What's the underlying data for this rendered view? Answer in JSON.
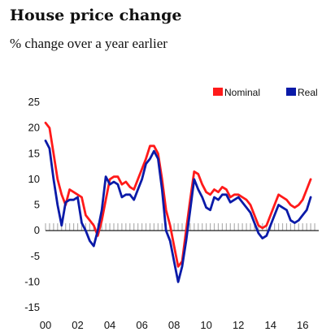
{
  "header": {
    "title": "House price change",
    "subtitle": "% change over a year earlier"
  },
  "chart_data": {
    "type": "line",
    "title": "House price change",
    "subtitle": "% change over a year earlier",
    "ylim": [
      -15,
      25
    ],
    "yticks": [
      25,
      20,
      15,
      10,
      5,
      0,
      -5,
      -10,
      -15
    ],
    "xticks": [
      "00",
      "02",
      "04",
      "06",
      "08",
      "10",
      "12",
      "14",
      "16"
    ],
    "xlim": [
      2000,
      2017
    ],
    "legend": "top-right",
    "grid": false,
    "series": [
      {
        "name": "Nominal",
        "color": "#ff1a1a",
        "points": [
          [
            2000.0,
            21
          ],
          [
            2000.25,
            20
          ],
          [
            2000.5,
            15
          ],
          [
            2000.75,
            10
          ],
          [
            2001.0,
            7
          ],
          [
            2001.25,
            5
          ],
          [
            2001.5,
            8
          ],
          [
            2001.75,
            7.5
          ],
          [
            2002.0,
            7
          ],
          [
            2002.25,
            6.5
          ],
          [
            2002.5,
            3
          ],
          [
            2002.75,
            2
          ],
          [
            2003.0,
            1
          ],
          [
            2003.25,
            -1
          ],
          [
            2003.5,
            2
          ],
          [
            2003.75,
            6
          ],
          [
            2004.0,
            10
          ],
          [
            2004.25,
            10.5
          ],
          [
            2004.5,
            10.5
          ],
          [
            2004.75,
            9
          ],
          [
            2005.0,
            9.5
          ],
          [
            2005.25,
            8.5
          ],
          [
            2005.5,
            8
          ],
          [
            2005.75,
            10
          ],
          [
            2006.0,
            12
          ],
          [
            2006.25,
            14
          ],
          [
            2006.5,
            16.5
          ],
          [
            2006.75,
            16.5
          ],
          [
            2007.0,
            15
          ],
          [
            2007.25,
            10
          ],
          [
            2007.5,
            4
          ],
          [
            2007.75,
            1
          ],
          [
            2008.0,
            -3
          ],
          [
            2008.25,
            -7
          ],
          [
            2008.5,
            -6
          ],
          [
            2008.75,
            0
          ],
          [
            2009.0,
            6
          ],
          [
            2009.25,
            11.5
          ],
          [
            2009.5,
            11
          ],
          [
            2009.75,
            9
          ],
          [
            2010.0,
            7.5
          ],
          [
            2010.25,
            7
          ],
          [
            2010.5,
            8
          ],
          [
            2010.75,
            7.5
          ],
          [
            2011.0,
            8.5
          ],
          [
            2011.25,
            8
          ],
          [
            2011.5,
            6.5
          ],
          [
            2011.75,
            7
          ],
          [
            2012.0,
            7
          ],
          [
            2012.25,
            6.5
          ],
          [
            2012.5,
            6
          ],
          [
            2012.75,
            5
          ],
          [
            2013.0,
            3
          ],
          [
            2013.25,
            1
          ],
          [
            2013.5,
            0.5
          ],
          [
            2013.75,
            1
          ],
          [
            2014.0,
            3
          ],
          [
            2014.25,
            5
          ],
          [
            2014.5,
            7
          ],
          [
            2014.75,
            6.5
          ],
          [
            2015.0,
            6
          ],
          [
            2015.25,
            5
          ],
          [
            2015.5,
            4.5
          ],
          [
            2015.75,
            5
          ],
          [
            2016.0,
            6
          ],
          [
            2016.25,
            8
          ],
          [
            2016.5,
            10
          ]
        ]
      },
      {
        "name": "Real",
        "color": "#0a1aa8",
        "points": [
          [
            2000.0,
            17.5
          ],
          [
            2000.25,
            16
          ],
          [
            2000.5,
            10
          ],
          [
            2000.75,
            5
          ],
          [
            2001.0,
            1
          ],
          [
            2001.25,
            5.5
          ],
          [
            2001.5,
            6
          ],
          [
            2001.75,
            6
          ],
          [
            2002.0,
            6.5
          ],
          [
            2002.25,
            1.5
          ],
          [
            2002.5,
            0
          ],
          [
            2002.75,
            -2
          ],
          [
            2003.0,
            -3
          ],
          [
            2003.25,
            0
          ],
          [
            2003.5,
            4
          ],
          [
            2003.75,
            10.5
          ],
          [
            2004.0,
            9
          ],
          [
            2004.25,
            9.5
          ],
          [
            2004.5,
            9
          ],
          [
            2004.75,
            6.5
          ],
          [
            2005.0,
            7
          ],
          [
            2005.25,
            7
          ],
          [
            2005.5,
            6
          ],
          [
            2005.75,
            8
          ],
          [
            2006.0,
            10
          ],
          [
            2006.25,
            13
          ],
          [
            2006.5,
            14
          ],
          [
            2006.75,
            15.5
          ],
          [
            2007.0,
            14
          ],
          [
            2007.25,
            8
          ],
          [
            2007.5,
            0
          ],
          [
            2007.75,
            -2
          ],
          [
            2008.0,
            -6
          ],
          [
            2008.25,
            -10
          ],
          [
            2008.5,
            -7
          ],
          [
            2008.75,
            -2
          ],
          [
            2009.0,
            4
          ],
          [
            2009.25,
            10
          ],
          [
            2009.5,
            8
          ],
          [
            2009.75,
            6.5
          ],
          [
            2010.0,
            4.5
          ],
          [
            2010.25,
            4
          ],
          [
            2010.5,
            6.5
          ],
          [
            2010.75,
            6
          ],
          [
            2011.0,
            7
          ],
          [
            2011.25,
            7
          ],
          [
            2011.5,
            5.5
          ],
          [
            2011.75,
            6
          ],
          [
            2012.0,
            6.5
          ],
          [
            2012.25,
            5.5
          ],
          [
            2012.5,
            4.5
          ],
          [
            2012.75,
            3.5
          ],
          [
            2013.0,
            1.5
          ],
          [
            2013.25,
            -0.5
          ],
          [
            2013.5,
            -1.5
          ],
          [
            2013.75,
            -1
          ],
          [
            2014.0,
            1
          ],
          [
            2014.25,
            3
          ],
          [
            2014.5,
            5
          ],
          [
            2014.75,
            4.5
          ],
          [
            2015.0,
            4
          ],
          [
            2015.25,
            2
          ],
          [
            2015.5,
            1.5
          ],
          [
            2015.75,
            2
          ],
          [
            2016.0,
            3
          ],
          [
            2016.25,
            4
          ],
          [
            2016.5,
            6.5
          ]
        ]
      }
    ]
  }
}
